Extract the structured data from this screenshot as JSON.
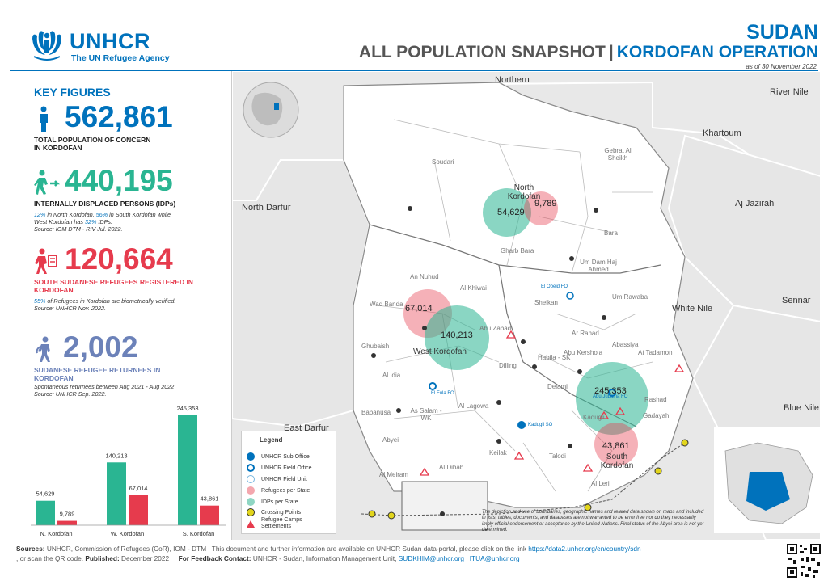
{
  "header": {
    "org_name": "UNHCR",
    "org_sub": "The UN Refugee Agency",
    "country": "SUDAN",
    "title_part1": "ALL POPULATION SNAPSHOT",
    "title_sep": "|",
    "title_part2": "KORDOFAN OPERATION",
    "date": "as of 30 November 2022"
  },
  "key_figures": {
    "title": "KEY FIGURES",
    "total": {
      "value": "562,861",
      "label": "TOTAL POPULATION OF CONCERN IN KORDOFAN",
      "icon": "person-icon",
      "color": "#0072bc"
    },
    "idps": {
      "value": "440,195",
      "label": "INTERNALLY DISPLACED PERSONS (IDPs)",
      "icon": "idp-icon",
      "color": "#2ab592",
      "note1_a": "12%",
      "note1_b": " in North Kordofan, ",
      "note1_c": "56%",
      "note1_d": " in South Kordofan while",
      "note2_a": "West Kordofan has ",
      "note2_b": "32%",
      "note2_c": " IDPs.",
      "source": "Source: IOM DTM - RIV Jul. 2022."
    },
    "refugees": {
      "value": "120,664",
      "label": "SOUTH SUDANESE REFUGEES REGISTERED IN KORDOFAN",
      "icon": "refugee-icon",
      "color": "#e63b4d",
      "note1_a": "55%",
      "note1_b": " of Refugees in Kordofan are biometrically verified.",
      "source": "Source: UNHCR Nov. 2022."
    },
    "returnees": {
      "value": "2,002",
      "label": "SUDANESE REFUGEE RETURNEES IN KORDOFAN",
      "icon": "returnee-icon",
      "color": "#6c82b9",
      "note1": "Spontaneous returnees between Aug 2021 - Aug 2022",
      "source": "Source: UNHCR Sep. 2022."
    }
  },
  "chart_data": {
    "type": "bar",
    "categories": [
      "N. Kordofan",
      "W. Kordofan",
      "S. Kordofan"
    ],
    "series": [
      {
        "color": "#2ab592",
        "values": [
          54629,
          140213,
          245353
        ]
      },
      {
        "color": "#e63b4d",
        "values": [
          9789,
          67014,
          43861
        ]
      }
    ],
    "value_labels": [
      [
        "54,629",
        "140,213",
        "245,353"
      ],
      [
        "9,789",
        "67,014",
        "43,861"
      ]
    ],
    "ylim": [
      0,
      245353
    ]
  },
  "map": {
    "regions": [
      {
        "name": "Northern",
        "kind": "big"
      },
      {
        "name": "River Nile",
        "kind": "big"
      },
      {
        "name": "Khartoum",
        "kind": "big"
      },
      {
        "name": "North Darfur",
        "kind": "big"
      },
      {
        "name": "Aj Jazirah",
        "kind": "big"
      },
      {
        "name": "White Nile",
        "kind": "big"
      },
      {
        "name": "Sennar",
        "kind": "big"
      },
      {
        "name": "Blue Nile",
        "kind": "big"
      },
      {
        "name": "East Darfur",
        "kind": "big"
      },
      {
        "name": "Soudari",
        "kind": "small"
      },
      {
        "name": "Gebrat Al Sheikh",
        "kind": "small"
      },
      {
        "name": "Bara",
        "kind": "small"
      },
      {
        "name": "Gharb Bara",
        "kind": "small"
      },
      {
        "name": "Um Dam Haj Ahmed",
        "kind": "small"
      },
      {
        "name": "Um Rawaba",
        "kind": "small"
      },
      {
        "name": "Sheikan",
        "kind": "small"
      },
      {
        "name": "Ar Rahad",
        "kind": "small"
      },
      {
        "name": "Abassiya",
        "kind": "small"
      },
      {
        "name": "At Tadamon",
        "kind": "small"
      },
      {
        "name": "An Nuhud",
        "kind": "small"
      },
      {
        "name": "Al Khiwai",
        "kind": "small"
      },
      {
        "name": "Wad Banda",
        "kind": "small"
      },
      {
        "name": "Abu Zabad",
        "kind": "small"
      },
      {
        "name": "Ghubaish",
        "kind": "small"
      },
      {
        "name": "Al Idia",
        "kind": "small"
      },
      {
        "name": "Abu Kershola",
        "kind": "small"
      },
      {
        "name": "Habila - SK",
        "kind": "small"
      },
      {
        "name": "Dilling",
        "kind": "small"
      },
      {
        "name": "Delami",
        "kind": "small"
      },
      {
        "name": "Keilak",
        "kind": "small"
      },
      {
        "name": "Al Lagowa",
        "kind": "small"
      },
      {
        "name": "As Salam - WK",
        "kind": "small"
      },
      {
        "name": "Abyei",
        "kind": "small"
      },
      {
        "name": "Al Meiram",
        "kind": "small"
      },
      {
        "name": "Al Dibab",
        "kind": "small"
      },
      {
        "name": "Talodi",
        "kind": "small"
      },
      {
        "name": "Al Leri",
        "kind": "small"
      },
      {
        "name": "Babanusa",
        "kind": "small"
      },
      {
        "name": "Rashad",
        "kind": "small"
      },
      {
        "name": "Kadugli",
        "kind": "small"
      },
      {
        "name": "Gadayah",
        "kind": "small"
      }
    ],
    "state_labels": {
      "north": "North Kordofan",
      "west": "West Kordofan",
      "south": "South Kordofan"
    },
    "offices": {
      "so": "Kadugli SO",
      "fo1": "El Obeid FO",
      "fo2": "Abu Jubaiha FO",
      "fo3": "El Fula FO"
    },
    "bubbles": {
      "north_idp": "54,629",
      "north_ref": "9,789",
      "west_idp": "140,213",
      "west_ref": "67,014",
      "south_idp": "245,353",
      "south_ref": "43,861"
    },
    "colors": {
      "idp": "#2ab592",
      "refugee": "#e63b4d",
      "unhcr": "#0072bc"
    }
  },
  "legend": {
    "title": "Legend",
    "items": [
      "UNHCR Sub Office",
      "UNHCR Field Office",
      "UNHCR Field Unit",
      "Refugees per State",
      "IDPs per State",
      "Crossing Points",
      "Refugee Camps Settlements"
    ]
  },
  "disclaimer": "The depiction and use of boundaries, geographic names and related data shown on maps and included in lists, tables, documents, and databases are not warranted to be error free nor do they necessarily imply official endorsement or acceptance by the United Nations. Final status of the Abyei area is not yet determined.",
  "footer": {
    "sources_label": "Sources:",
    "sources_text": " UNHCR, Commission of Refugees (CoR), IOM - DTM | This document and further information are available on UNHCR Sudan data-portal, please click on the link ",
    "portal_link": "https://data2.unhcr.org/en/country/sdn",
    "line2_a": ", or scan the QR code. ",
    "published_label": "Published:",
    "published_value": " December 2022",
    "feedback_label": "For Feedback Contact:",
    "feedback_text": " UNHCR - Sudan, Information Management Unit, ",
    "email1": "SUDKHIM@unhcr.org",
    "email_sep": " | ",
    "email2": "ITUA@unhcr.org"
  }
}
